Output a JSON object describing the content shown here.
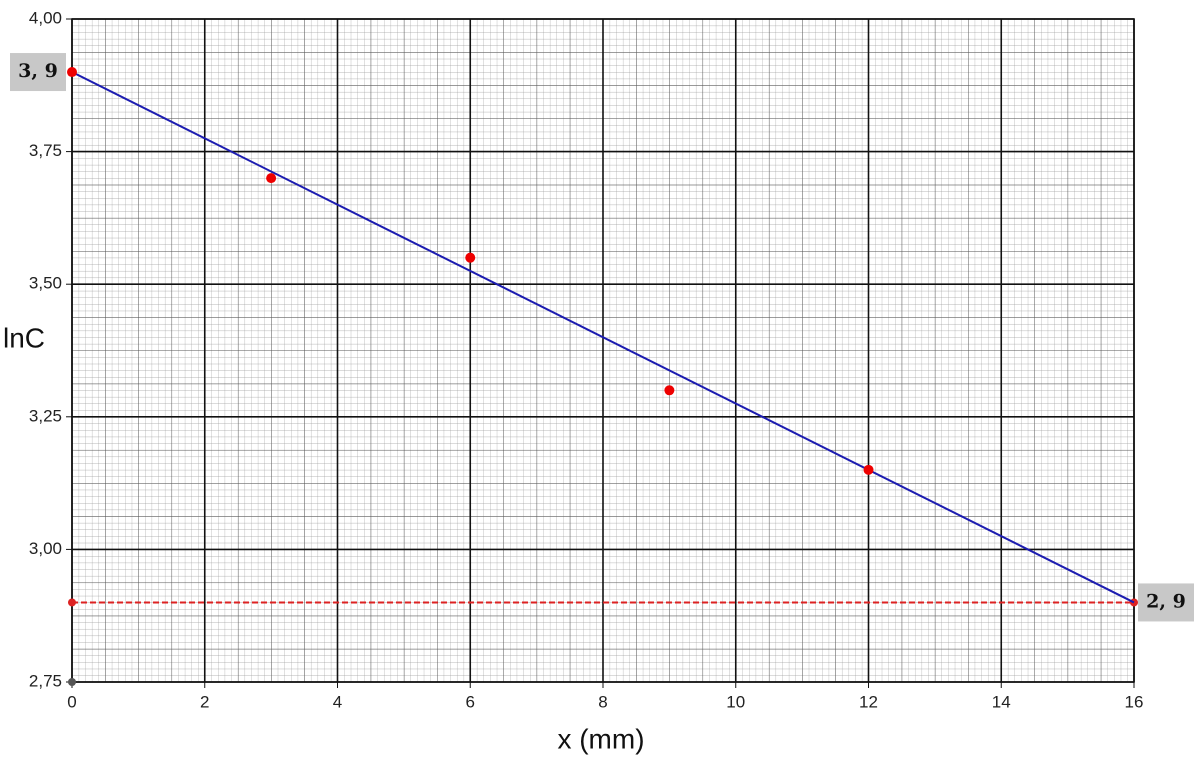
{
  "chart_data": {
    "type": "scatter",
    "x_label": "x (mm)",
    "y_label": "lnC",
    "xlim": [
      0,
      16
    ],
    "ylim": [
      2.75,
      4.0
    ],
    "xticks": [
      0,
      2,
      4,
      6,
      8,
      10,
      12,
      14,
      16
    ],
    "yticks": [
      {
        "value": 2.75,
        "label": "2,75"
      },
      {
        "value": 3.0,
        "label": "3,00"
      },
      {
        "value": 3.25,
        "label": "3,25"
      },
      {
        "value": 3.5,
        "label": "3,50"
      },
      {
        "value": 3.75,
        "label": "3,75"
      },
      {
        "value": 4.0,
        "label": "4,00"
      }
    ],
    "grid": true,
    "points": {
      "color": "#ee0000",
      "x": [
        0,
        3,
        6,
        9,
        12
      ],
      "y": [
        3.9,
        3.7,
        3.55,
        3.3,
        3.15
      ]
    },
    "fit_line": {
      "color": "#1c1cb0",
      "x": [
        0,
        16
      ],
      "y": [
        3.9,
        2.9
      ]
    },
    "reference_line": {
      "color": "#dd2222",
      "dashed": true,
      "x": [
        0,
        16
      ],
      "y": [
        2.9,
        2.9
      ]
    },
    "annotations": [
      {
        "text": "3, 9",
        "x": 0,
        "y": 3.9,
        "side": "left"
      },
      {
        "text": "2, 9",
        "x": 16,
        "y": 2.9,
        "side": "right"
      }
    ]
  }
}
